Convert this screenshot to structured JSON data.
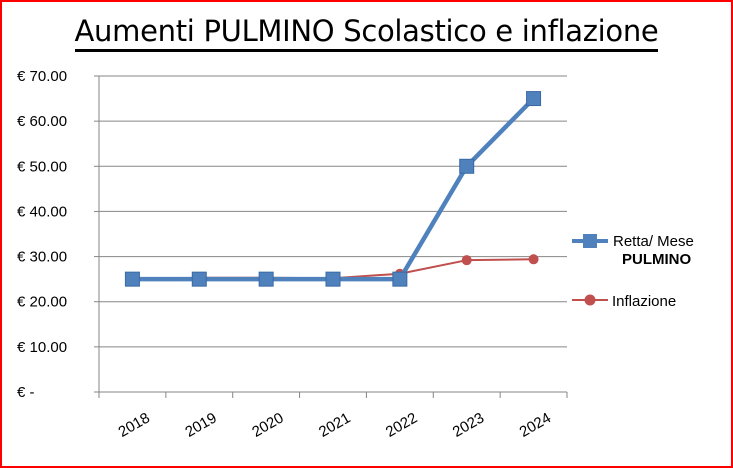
{
  "chart_data": {
    "type": "line",
    "title": "Aumenti PULMINO Scolastico e inflazione",
    "categories": [
      "2018",
      "2019",
      "2020",
      "2021",
      "2022",
      "2023",
      "2024"
    ],
    "y_tick_labels": [
      "€ -",
      "€ 10.00",
      "€ 20.00",
      "€ 30.00",
      "€ 40.00",
      "€ 50.00",
      "€ 60.00",
      "€ 70.00"
    ],
    "ylim": [
      0,
      70
    ],
    "grid": "horizontal",
    "legend_position": "right",
    "series": [
      {
        "name_line1": "Retta/ Mese",
        "name_line2": "PULMINO",
        "color": "#4f81bd",
        "marker": "square",
        "values": [
          25,
          25,
          25,
          25,
          25,
          50,
          65
        ]
      },
      {
        "name": "Inflazione",
        "color": "#c0504d",
        "marker": "circle",
        "values": [
          25,
          25.3,
          25.3,
          25.2,
          26.2,
          29.2,
          29.4
        ]
      }
    ]
  },
  "colors": {
    "border": "#ff0000",
    "grid": "#868686",
    "axis": "#868686"
  }
}
